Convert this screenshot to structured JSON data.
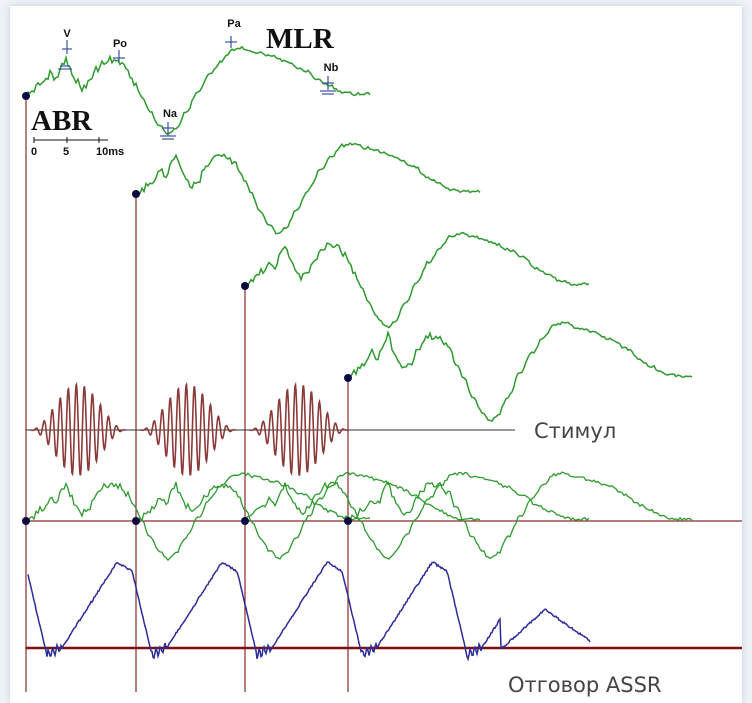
{
  "title_mlr": "MLR",
  "title_abr": "ABR",
  "scale": {
    "ticks": [
      "0",
      "5",
      "10ms"
    ]
  },
  "peaks": {
    "v": "V",
    "po": "Po",
    "na": "Na",
    "pa": "Pa",
    "nb": "Nb"
  },
  "stimulus_label": "Стимул",
  "response_label": "Отговор ASSR",
  "colors": {
    "response": "#2e9a2e",
    "stimulus": "#8b3a3a",
    "assr": "#2c2c96",
    "marker_line": "#8b2a2a",
    "baseline": "#7a1010",
    "peak_marker": "#3a4fa0",
    "dot": "#0a0a40"
  }
}
